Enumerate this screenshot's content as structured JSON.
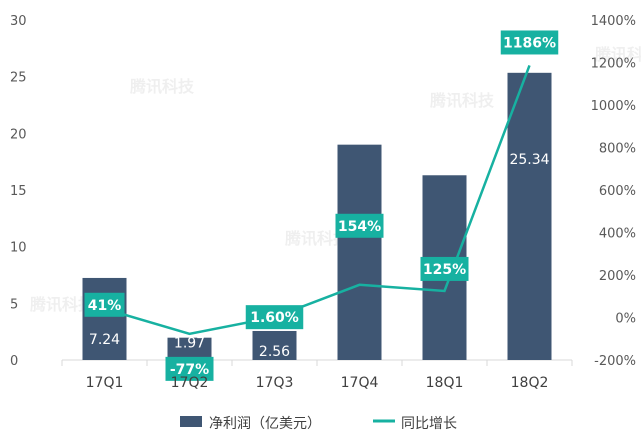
{
  "chart_data": {
    "type": "bar",
    "categories": [
      "17Q1",
      "17Q2",
      "17Q3",
      "17Q4",
      "18Q1",
      "18Q2"
    ],
    "series": [
      {
        "name": "净利润（亿美元）",
        "type": "bar",
        "axis": "left",
        "values": [
          7.24,
          1.97,
          2.56,
          19,
          16.3,
          25.34
        ],
        "labels": [
          "7.24",
          "1.97",
          "2.56",
          "19",
          "",
          "25.34"
        ],
        "color": "#3f5673"
      },
      {
        "name": "同比增长",
        "type": "line",
        "axis": "right",
        "values": [
          41,
          -77,
          1.6,
          154,
          125,
          1186
        ],
        "labels": [
          "41%",
          "-77%",
          "1.60%",
          "154%",
          "125%",
          "1186%"
        ],
        "color": "#17b1a1"
      }
    ],
    "ylim_left": [
      0,
      30
    ],
    "ylim_right": [
      -200,
      1400
    ],
    "left_ticks": [
      "0",
      "5",
      "10",
      "15",
      "20",
      "25",
      "30"
    ],
    "right_ticks": [
      "-200%",
      "0%",
      "200%",
      "400%",
      "600%",
      "800%",
      "1000%",
      "1200%",
      "1400%"
    ],
    "grid": false,
    "legend_position": "bottom",
    "watermark": "腾讯科技"
  }
}
